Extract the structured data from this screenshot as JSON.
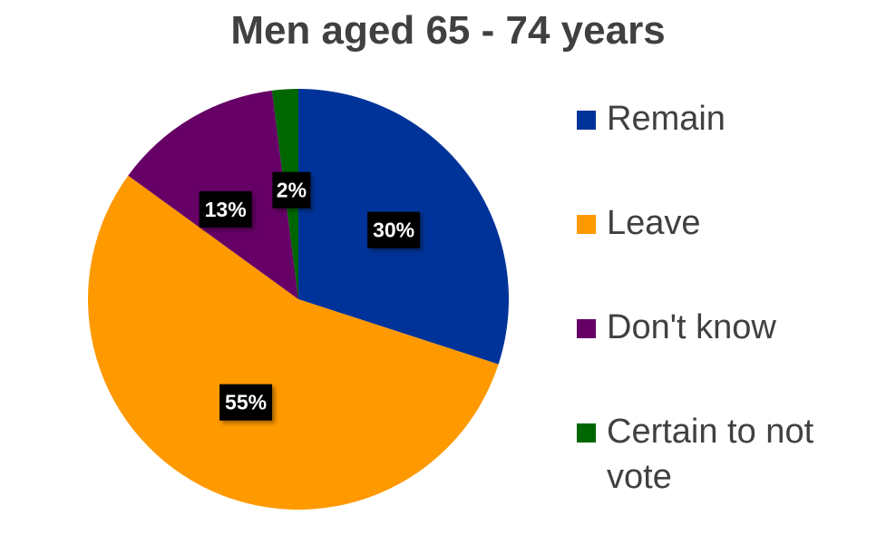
{
  "chart_data": {
    "type": "pie",
    "title": "Men aged 65 - 74 years",
    "categories": [
      "Remain",
      "Leave",
      "Don't know",
      "Certain to not vote"
    ],
    "values": [
      30,
      55,
      13,
      2
    ],
    "value_labels": [
      "30%",
      "55%",
      "13%",
      "2%"
    ],
    "colors": [
      "#003399",
      "#FF9900",
      "#660066",
      "#006600"
    ],
    "legend_position": "right"
  }
}
